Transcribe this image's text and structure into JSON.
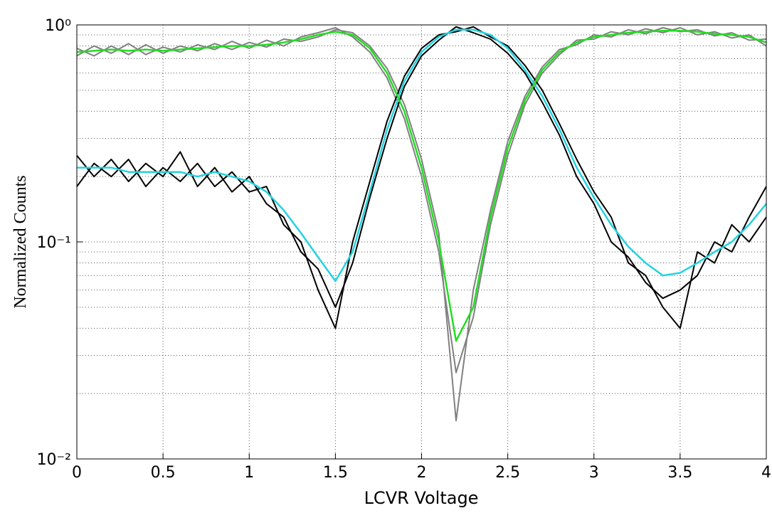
{
  "chart_data": {
    "type": "line",
    "xlabel": "LCVR Voltage",
    "ylabel": "Normalized Counts",
    "xlim": [
      0,
      4
    ],
    "ylim": [
      0.01,
      1
    ],
    "log_y": true,
    "grid": true,
    "xticks": [
      0,
      0.5,
      1,
      1.5,
      2,
      2.5,
      3,
      3.5,
      4
    ],
    "yticks": [
      {
        "value": 0.01,
        "label": "10⁻²"
      },
      {
        "value": 0.1,
        "label": "10⁻¹"
      },
      {
        "value": 1,
        "label": "10⁰"
      }
    ],
    "x": [
      0,
      0.1,
      0.2,
      0.3,
      0.4,
      0.5,
      0.6,
      0.7,
      0.8,
      0.9,
      1,
      1.1,
      1.2,
      1.3,
      1.4,
      1.5,
      1.6,
      1.7,
      1.8,
      1.9,
      2,
      2.1,
      2.2,
      2.3,
      2.4,
      2.5,
      2.6,
      2.7,
      2.8,
      2.9,
      3,
      3.1,
      3.2,
      3.3,
      3.4,
      3.5,
      3.6,
      3.7,
      3.8,
      3.9,
      4
    ],
    "series": [
      {
        "color": "#808080",
        "width": 2,
        "values": [
          0.72,
          0.8,
          0.74,
          0.82,
          0.73,
          0.79,
          0.75,
          0.81,
          0.77,
          0.84,
          0.78,
          0.85,
          0.8,
          0.88,
          0.92,
          0.97,
          0.88,
          0.75,
          0.57,
          0.37,
          0.2,
          0.09,
          0.025,
          0.045,
          0.12,
          0.25,
          0.43,
          0.6,
          0.73,
          0.85,
          0.86,
          0.93,
          0.9,
          0.96,
          0.92,
          0.97,
          0.9,
          0.93,
          0.87,
          0.9,
          0.8
        ]
      },
      {
        "color": "#808080",
        "width": 2,
        "values": [
          0.78,
          0.72,
          0.8,
          0.73,
          0.81,
          0.74,
          0.8,
          0.76,
          0.82,
          0.77,
          0.83,
          0.79,
          0.86,
          0.84,
          0.88,
          0.95,
          0.92,
          0.8,
          0.63,
          0.43,
          0.24,
          0.11,
          0.015,
          0.06,
          0.14,
          0.29,
          0.47,
          0.64,
          0.77,
          0.81,
          0.9,
          0.88,
          0.95,
          0.91,
          0.97,
          0.93,
          0.95,
          0.89,
          0.92,
          0.85,
          0.86
        ]
      },
      {
        "color": "#000000",
        "width": 2,
        "values": [
          0.25,
          0.2,
          0.24,
          0.19,
          0.23,
          0.2,
          0.26,
          0.18,
          0.22,
          0.17,
          0.2,
          0.15,
          0.13,
          0.09,
          0.075,
          0.05,
          0.08,
          0.16,
          0.3,
          0.52,
          0.72,
          0.85,
          0.98,
          0.92,
          0.86,
          0.74,
          0.6,
          0.44,
          0.31,
          0.2,
          0.15,
          0.1,
          0.085,
          0.065,
          0.055,
          0.06,
          0.07,
          0.1,
          0.09,
          0.13,
          0.18
        ]
      },
      {
        "color": "#000000",
        "width": 2,
        "values": [
          0.18,
          0.23,
          0.2,
          0.24,
          0.18,
          0.22,
          0.19,
          0.23,
          0.18,
          0.21,
          0.17,
          0.18,
          0.12,
          0.1,
          0.06,
          0.04,
          0.1,
          0.19,
          0.36,
          0.58,
          0.78,
          0.9,
          0.93,
          0.98,
          0.88,
          0.8,
          0.65,
          0.5,
          0.35,
          0.24,
          0.17,
          0.13,
          0.08,
          0.07,
          0.05,
          0.04,
          0.09,
          0.08,
          0.12,
          0.1,
          0.13
        ]
      },
      {
        "color": "#22d3e0",
        "width": 2.5,
        "values": [
          0.22,
          0.22,
          0.22,
          0.21,
          0.21,
          0.21,
          0.21,
          0.2,
          0.21,
          0.2,
          0.19,
          0.17,
          0.14,
          0.11,
          0.085,
          0.066,
          0.09,
          0.17,
          0.33,
          0.55,
          0.75,
          0.88,
          0.95,
          0.95,
          0.9,
          0.78,
          0.62,
          0.47,
          0.33,
          0.22,
          0.16,
          0.12,
          0.095,
          0.08,
          0.07,
          0.072,
          0.08,
          0.09,
          0.1,
          0.12,
          0.15
        ]
      },
      {
        "color": "#22dd22",
        "width": 2.5,
        "values": [
          0.75,
          0.76,
          0.77,
          0.76,
          0.77,
          0.76,
          0.77,
          0.78,
          0.79,
          0.8,
          0.8,
          0.81,
          0.83,
          0.86,
          0.9,
          0.93,
          0.9,
          0.78,
          0.6,
          0.4,
          0.22,
          0.1,
          0.035,
          0.05,
          0.13,
          0.27,
          0.45,
          0.62,
          0.75,
          0.83,
          0.88,
          0.9,
          0.92,
          0.93,
          0.94,
          0.94,
          0.93,
          0.91,
          0.9,
          0.88,
          0.83
        ]
      }
    ]
  }
}
